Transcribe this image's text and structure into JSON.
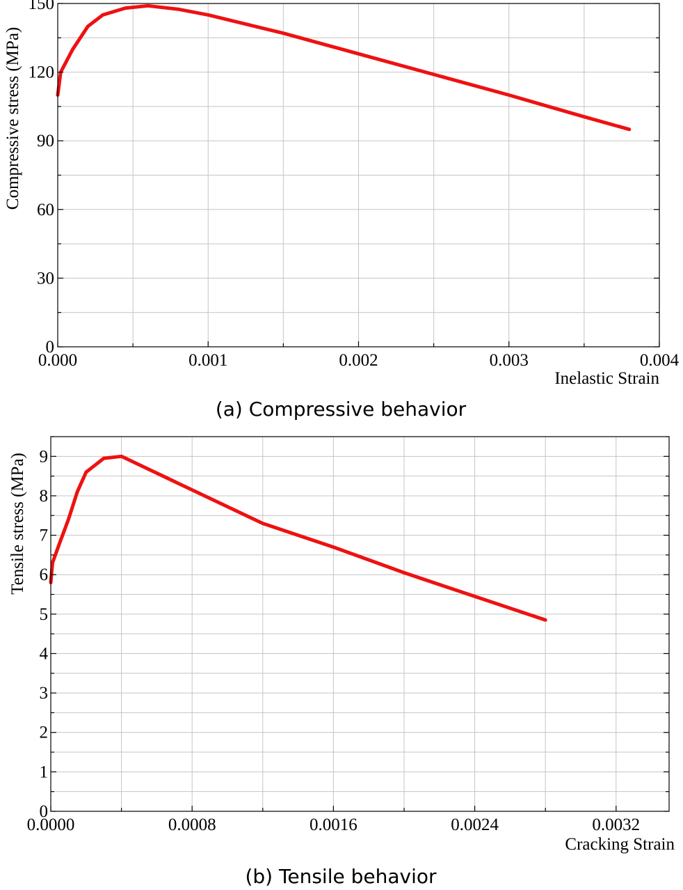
{
  "figure": {
    "caption_a": "(a) Compressive behavior",
    "caption_b": "(b) Tensile behavior"
  },
  "colors": {
    "line": "#ee1111",
    "grid": "#c4c4c4"
  },
  "chart_data": [
    {
      "type": "line",
      "title": "",
      "xlabel": "Inelastic Strain",
      "ylabel": "Compressive stress (MPa)",
      "xlim": [
        0,
        0.004
      ],
      "ylim": [
        0,
        150
      ],
      "x_ticks": [
        0,
        0.001,
        0.002,
        0.003,
        0.004
      ],
      "x_tick_labels": [
        "0.000",
        "0.001",
        "0.002",
        "0.003",
        "0.004"
      ],
      "x_minor_step": 0.0005,
      "y_ticks": [
        0,
        30,
        60,
        90,
        120,
        150
      ],
      "y_tick_labels": [
        "0",
        "30",
        "60",
        "90",
        "120",
        "150"
      ],
      "y_minor_step": 15,
      "grid": true,
      "series": [
        {
          "name": "Compressive behavior",
          "x": [
            0.0,
            2e-05,
            0.0001,
            0.0002,
            0.0003,
            0.00045,
            0.0006,
            0.0008,
            0.001,
            0.0015,
            0.002,
            0.0025,
            0.003,
            0.0035,
            0.0038
          ],
          "y": [
            110,
            120,
            130,
            140,
            145,
            148,
            149,
            147.5,
            145,
            137,
            128,
            119,
            110,
            100.5,
            95
          ]
        }
      ]
    },
    {
      "type": "line",
      "title": "",
      "xlabel": "Cracking Strain",
      "ylabel": "Tensile stress (MPa)",
      "xlim": [
        0,
        0.0035
      ],
      "ylim": [
        0,
        9.5
      ],
      "x_ticks": [
        0,
        0.0008,
        0.0016,
        0.0024,
        0.0032
      ],
      "x_tick_labels": [
        "0.0000",
        "0.0008",
        "0.0016",
        "0.0024",
        "0.0032"
      ],
      "x_minor_step": 0.0004,
      "y_ticks": [
        0,
        1,
        2,
        3,
        4,
        5,
        6,
        7,
        8,
        9
      ],
      "y_tick_labels": [
        "0",
        "1",
        "2",
        "3",
        "4",
        "5",
        "6",
        "7",
        "8",
        "9"
      ],
      "y_minor_step": 0.5,
      "grid": true,
      "series": [
        {
          "name": "Tensile behavior",
          "x": [
            0.0,
            1e-05,
            5e-05,
            0.0001,
            0.00015,
            0.0002,
            0.0003,
            0.0004,
            0.0008,
            0.0012,
            0.0016,
            0.002,
            0.0024,
            0.0028
          ],
          "y": [
            5.8,
            6.3,
            6.8,
            7.4,
            8.1,
            8.6,
            8.95,
            9.0,
            8.15,
            7.3,
            6.7,
            6.05,
            5.45,
            4.85
          ]
        }
      ]
    }
  ]
}
